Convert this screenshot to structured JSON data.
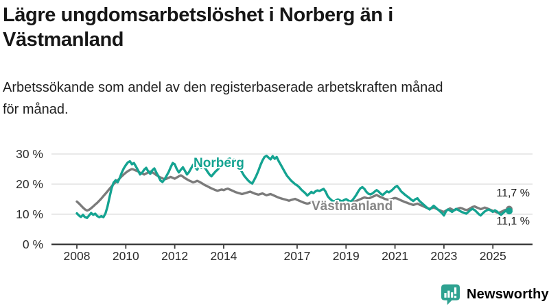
{
  "header": {
    "title_line1": "Lägre ungdomsarbetslöshet i Norberg än i",
    "title_line2": "Västmanland",
    "subtitle_line1": "Arbetssökande som andel av den registerbaserade arbetskraften månad",
    "subtitle_line2": "för månad."
  },
  "footer": {
    "brand": "Newsworthy",
    "brand_color": "#2fa291"
  },
  "chart_data": {
    "type": "line",
    "unit": "%",
    "x_start_year": 2008,
    "x_interval": "monthly",
    "x_end": "2025-09",
    "x_tick_labels": [
      "2008",
      "2010",
      "2012",
      "2014",
      "2017",
      "2019",
      "2021",
      "2023",
      "2025"
    ],
    "x_tick_years": [
      2008,
      2010,
      2012,
      2014,
      2017,
      2019,
      2021,
      2023,
      2025
    ],
    "y_tick_labels": [
      "30 %",
      "20 %",
      "10 %",
      "0 %"
    ],
    "y_tick_values": [
      30,
      20,
      10,
      0
    ],
    "ylim": [
      0,
      31
    ],
    "grid": "horizontal",
    "colors": {
      "grid": "#dcdcdc",
      "axis": "#3d3d3d"
    },
    "series": [
      {
        "name": "Västmanland",
        "color": "#7b7b7b",
        "end_label": "11,7 %",
        "end_value": 11.7,
        "values": [
          14.2,
          13.6,
          12.9,
          12.2,
          11.6,
          11.2,
          11.5,
          12.0,
          12.6,
          13.2,
          13.8,
          14.5,
          15.2,
          16.0,
          16.8,
          17.6,
          18.4,
          19.2,
          20.0,
          20.6,
          21.2,
          21.9,
          22.6,
          23.2,
          23.8,
          24.3,
          24.7,
          25.0,
          24.8,
          24.5,
          24.2,
          23.8,
          23.5,
          23.2,
          23.5,
          23.9,
          24.2,
          23.9,
          23.5,
          23.0,
          22.6,
          22.2,
          21.9,
          21.6,
          21.8,
          22.1,
          22.4,
          22.1,
          21.8,
          22.2,
          22.6,
          22.9,
          22.5,
          22.0,
          21.6,
          21.2,
          20.9,
          20.6,
          20.8,
          21.1,
          20.8,
          20.4,
          20.0,
          19.6,
          19.3,
          18.9,
          18.6,
          18.3,
          18.0,
          17.8,
          18.0,
          18.2,
          18.0,
          18.3,
          18.5,
          18.2,
          17.9,
          17.6,
          17.3,
          17.1,
          16.9,
          16.7,
          16.9,
          17.1,
          17.3,
          17.5,
          17.2,
          16.9,
          16.7,
          16.5,
          16.7,
          16.9,
          16.6,
          16.3,
          16.5,
          16.7,
          16.4,
          16.1,
          15.8,
          15.5,
          15.3,
          15.1,
          14.9,
          14.7,
          14.5,
          14.7,
          14.9,
          15.1,
          14.8,
          14.5,
          14.2,
          13.9,
          13.7,
          13.5,
          13.7,
          14.0,
          14.2,
          13.9,
          13.6,
          13.4,
          13.6,
          13.8,
          13.5,
          13.2,
          13.0,
          12.8,
          13.0,
          13.2,
          13.4,
          13.2,
          13.0,
          13.2,
          13.4,
          13.6,
          13.8,
          14.0,
          14.2,
          14.4,
          14.7,
          15.0,
          15.3,
          15.6,
          15.4,
          15.2,
          15.5,
          15.8,
          16.1,
          16.4,
          16.0,
          15.7,
          15.4,
          15.1,
          14.9,
          14.7,
          14.9,
          15.2,
          15.4,
          15.2,
          14.9,
          14.6,
          14.3,
          14.0,
          13.8,
          13.5,
          13.3,
          13.1,
          13.3,
          13.5,
          13.2,
          12.9,
          12.6,
          12.3,
          12.0,
          11.8,
          12.0,
          12.2,
          11.9,
          11.6,
          11.3,
          11.0,
          10.8,
          11.2,
          11.6,
          11.9,
          11.6,
          11.3,
          11.6,
          11.9,
          12.1,
          11.9,
          11.6,
          11.4,
          11.6,
          12.0,
          12.4,
          12.6,
          12.3,
          12.0,
          11.7,
          11.9,
          12.2,
          12.0,
          11.7,
          11.4,
          11.1,
          10.9,
          10.6,
          10.5,
          10.8,
          11.1,
          11.4,
          11.6,
          11.7
        ]
      },
      {
        "name": "Norberg",
        "color": "#14a391",
        "end_label": "11,1 %",
        "end_value": 11.1,
        "values": [
          10.3,
          9.6,
          9.1,
          9.8,
          9.0,
          8.8,
          9.6,
          10.4,
          9.8,
          10.2,
          9.4,
          9.0,
          9.4,
          9.0,
          10.2,
          12.5,
          15.5,
          18.5,
          20.5,
          21.3,
          20.6,
          22.0,
          23.8,
          25.2,
          26.3,
          27.2,
          27.6,
          26.6,
          27.0,
          25.8,
          24.6,
          23.2,
          23.8,
          24.8,
          25.4,
          24.2,
          23.4,
          24.6,
          25.2,
          23.8,
          22.6,
          21.2,
          20.7,
          21.6,
          22.8,
          24.0,
          25.6,
          27.0,
          26.6,
          25.0,
          23.9,
          24.8,
          25.6,
          24.4,
          23.2,
          24.0,
          25.2,
          26.4,
          25.6,
          24.8,
          26.0,
          25.4,
          26.0,
          25.2,
          24.2,
          23.2,
          22.6,
          23.4,
          24.2,
          24.8,
          25.6,
          26.4,
          27.0,
          27.6,
          28.2,
          28.5,
          27.8,
          28.2,
          27.4,
          26.4,
          25.2,
          24.0,
          22.8,
          22.0,
          21.2,
          20.6,
          20.2,
          21.4,
          22.8,
          24.4,
          26.2,
          27.8,
          29.0,
          29.4,
          28.8,
          28.2,
          29.3,
          28.4,
          29.0,
          27.6,
          26.4,
          25.2,
          24.0,
          22.8,
          22.0,
          21.2,
          20.6,
          20.0,
          19.6,
          19.0,
          18.2,
          17.6,
          17.0,
          16.2,
          16.8,
          17.4,
          17.0,
          17.6,
          17.9,
          17.7,
          18.1,
          18.4,
          17.5,
          16.0,
          15.2,
          14.6,
          14.2,
          14.6,
          14.9,
          14.6,
          14.3,
          14.7,
          15.0,
          14.6,
          14.2,
          14.6,
          15.4,
          16.4,
          17.6,
          18.6,
          19.0,
          18.4,
          17.4,
          16.8,
          16.6,
          16.9,
          17.5,
          18.0,
          17.5,
          16.8,
          16.4,
          17.0,
          17.6,
          17.3,
          17.7,
          18.3,
          19.0,
          19.4,
          18.6,
          17.6,
          17.0,
          16.4,
          15.9,
          15.4,
          14.8,
          14.4,
          15.0,
          15.3,
          14.4,
          13.8,
          13.2,
          12.6,
          12.0,
          11.6,
          12.2,
          12.8,
          12.2,
          11.6,
          11.0,
          10.4,
          9.6,
          11.0,
          11.6,
          11.2,
          10.8,
          11.3,
          11.8,
          11.4,
          11.0,
          10.7,
          10.4,
          10.2,
          10.8,
          11.4,
          11.8,
          11.4,
          10.8,
          10.1,
          9.6,
          10.3,
          10.9,
          11.3,
          11.6,
          11.2,
          10.8,
          11.3,
          10.9,
          10.3,
          9.8,
          10.4,
          11.0,
          11.4,
          11.1
        ]
      }
    ]
  }
}
